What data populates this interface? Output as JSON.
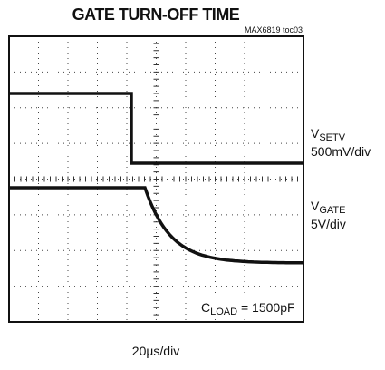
{
  "title": "GATE TURN-OFF TIME",
  "figure_id": "MAX6819 toc03",
  "traces": [
    {
      "name": {
        "main": "V",
        "sub": "SETV"
      },
      "scale": "500mV/div"
    },
    {
      "name": {
        "main": "V",
        "sub": "GATE"
      },
      "scale": "5V/div"
    }
  ],
  "annotation": {
    "main": "C",
    "sub": "LOAD",
    "rest": " = 1500pF"
  },
  "time_scale": "20µs/div"
}
